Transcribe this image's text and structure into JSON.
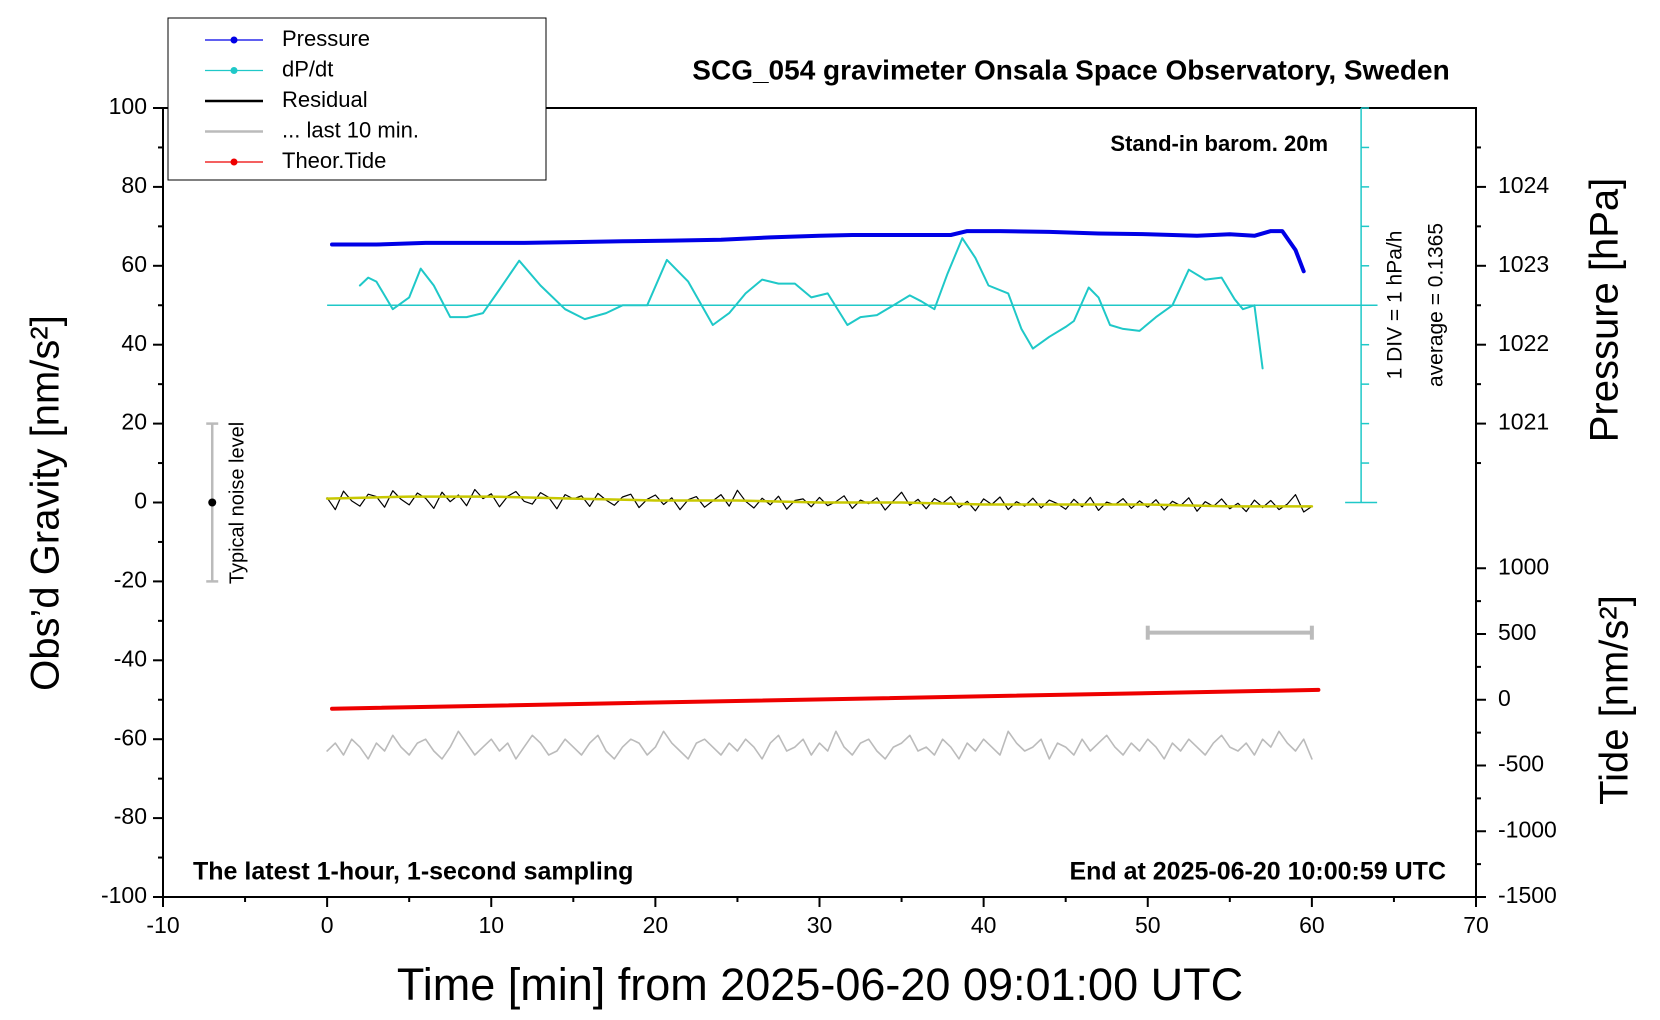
{
  "chart_data": {
    "type": "line",
    "title": "SCG_054 gravimeter Onsala Space Observatory, Sweden",
    "x_label": "Time [min] from 2025-06-20 09:01:00 UTC",
    "y_label": "Obs’d Gravity [nm/s²]",
    "y2_label": "Pressure [hPa]",
    "y3_label": "Tide [nm/s²]",
    "note_top_right": "Stand-in barom. 20m",
    "note_bottom_left": "The latest 1-hour, 1-second sampling",
    "note_bottom_right": "End at 2025-06-20 10:00:59 UTC",
    "dpdt_scale_label": "1 DIV = 1 hPa/h",
    "dpdt_average_label": "average = 0.1365",
    "noise_label": "Typical noise level",
    "xlim": [
      -10,
      70
    ],
    "xticks": [
      -10,
      0,
      10,
      20,
      30,
      40,
      50,
      60,
      70
    ],
    "xminor": [
      -5,
      5,
      15,
      25,
      35,
      45,
      55,
      65
    ],
    "ylim": [
      -100,
      100
    ],
    "yticks": [
      -100,
      -80,
      -60,
      -40,
      -20,
      0,
      20,
      40,
      60,
      80,
      100
    ],
    "yminor": [
      -90,
      -70,
      -50,
      -30,
      -10,
      10,
      30,
      50,
      70,
      90
    ],
    "y2lim": [
      1015,
      1025
    ],
    "y2ticks": [
      1021,
      1022,
      1023,
      1024
    ],
    "y2minor": [
      1020.5,
      1021.5,
      1022.5,
      1023.5,
      1024.5
    ],
    "y3lim": [
      -1500,
      4500
    ],
    "y3ticks": [
      -1500,
      -1000,
      -500,
      0,
      500,
      1000
    ],
    "y3minor": [
      -1250,
      -750,
      -250,
      250,
      750
    ],
    "x": [
      0,
      0.5,
      1,
      1.5,
      2,
      2.5,
      3,
      3.5,
      4,
      4.5,
      5,
      5.5,
      6,
      6.5,
      7,
      7.5,
      8,
      8.5,
      9,
      9.5,
      10,
      10.5,
      11,
      11.5,
      12,
      12.5,
      13,
      13.5,
      14,
      14.5,
      15,
      15.5,
      16,
      16.5,
      17,
      17.5,
      18,
      18.5,
      19,
      19.5,
      20,
      20.5,
      21,
      21.5,
      22,
      22.5,
      23,
      23.5,
      24,
      24.5,
      25,
      25.5,
      26,
      26.5,
      27,
      27.5,
      28,
      28.5,
      29,
      29.5,
      30,
      30.5,
      31,
      31.5,
      32,
      32.5,
      33,
      33.5,
      34,
      34.5,
      35,
      35.5,
      36,
      36.5,
      37,
      37.5,
      38,
      38.5,
      39,
      39.5,
      40,
      40.5,
      41,
      41.5,
      42,
      42.5,
      43,
      43.5,
      44,
      44.5,
      45,
      45.5,
      46,
      46.5,
      47,
      47.5,
      48,
      48.5,
      49,
      49.5,
      50,
      50.5,
      51,
      51.5,
      52,
      52.5,
      53,
      53.5,
      54,
      54.5,
      55,
      55.5,
      56,
      56.5,
      57,
      57.5,
      58,
      58.5,
      59,
      59.5,
      60
    ],
    "series": [
      {
        "name": "Pressure",
        "color": "#0000e6",
        "axis": "y2",
        "legend_marker": true,
        "width": 4,
        "x": [
          0.3,
          3,
          6,
          9,
          12,
          15,
          18,
          21,
          24,
          27,
          30,
          32,
          35,
          38,
          39,
          41,
          44,
          47,
          50,
          53,
          55,
          56.5,
          57.5,
          58.2,
          59,
          59.5
        ],
        "values": [
          1023.27,
          1023.27,
          1023.29,
          1023.29,
          1023.29,
          1023.3,
          1023.31,
          1023.32,
          1023.33,
          1023.36,
          1023.38,
          1023.39,
          1023.39,
          1023.39,
          1023.44,
          1023.44,
          1023.43,
          1023.41,
          1023.4,
          1023.38,
          1023.4,
          1023.38,
          1023.44,
          1023.44,
          1023.2,
          1022.93
        ]
      },
      {
        "name": "dP/dt",
        "color": "#1fc8c8",
        "legend_marker": true,
        "width": 2,
        "x": [
          2,
          2.5,
          3,
          4,
          5,
          5.7,
          6.5,
          7.5,
          8.5,
          9.5,
          10.5,
          11.7,
          13,
          14.5,
          15.7,
          17,
          18,
          19.5,
          20.7,
          22,
          23.5,
          24.5,
          25.5,
          26.5,
          27.5,
          28.5,
          29.5,
          30.5,
          31.7,
          32.5,
          33.5,
          34.5,
          35.5,
          36.2,
          37,
          37.8,
          38.7,
          39.5,
          40.3,
          41.5,
          42.3,
          43,
          44,
          45,
          45.5,
          46.4,
          47,
          47.7,
          48.5,
          49.5,
          50.5,
          51.5,
          52.5,
          53.5,
          54.5,
          55.3,
          55.8,
          56.5,
          57
        ],
        "values": [
          55,
          57,
          56,
          49,
          52,
          59.3,
          55,
          47,
          47,
          48,
          54,
          61.3,
          55,
          49,
          46.5,
          48,
          50,
          50,
          61.5,
          56,
          45,
          48,
          53,
          56.5,
          55.5,
          55.5,
          52,
          53,
          45,
          47,
          47.5,
          50,
          52.5,
          51,
          49,
          58,
          67,
          62,
          55,
          53,
          44,
          39,
          42,
          44.5,
          46,
          54.5,
          52,
          45,
          44,
          43.5,
          47,
          50,
          59,
          56.5,
          57,
          51.5,
          49,
          50,
          34
        ]
      },
      {
        "name": "Residual",
        "color": "#000000",
        "legend_marker": false,
        "width": 1.2,
        "values": [
          1.2,
          -1.8,
          2.9,
          0.4,
          -0.9,
          2.1,
          1.5,
          -1.2,
          3.0,
          0.8,
          -0.6,
          2.4,
          1.1,
          -1.5,
          2.6,
          0.2,
          1.9,
          -0.8,
          3.3,
          1.0,
          2.2,
          -1.1,
          1.6,
          2.8,
          0.3,
          -0.4,
          2.5,
          1.3,
          -1.6,
          2.0,
          0.9,
          1.7,
          -1.0,
          2.3,
          0.6,
          -0.7,
          1.4,
          2.1,
          -1.3,
          0.8,
          1.9,
          -0.5,
          1.2,
          -1.8,
          0.7,
          1.5,
          -1.2,
          0.4,
          2.0,
          -0.9,
          3.1,
          0.3,
          -1.4,
          1.1,
          -0.6,
          1.6,
          -1.7,
          0.5,
          0.9,
          -1.1,
          1.3,
          -0.8,
          0.2,
          1.7,
          -1.5,
          0.6,
          -0.3,
          1.2,
          -1.9,
          0.4,
          2.6,
          -0.7,
          0.8,
          -1.6,
          1.0,
          -0.2,
          1.5,
          -1.3,
          0.3,
          -2.1,
          0.9,
          -0.5,
          1.4,
          -1.8,
          0.2,
          -0.9,
          1.1,
          -1.4,
          0.6,
          -0.3,
          -1.7,
          0.8,
          -1.1,
          1.3,
          -2.0,
          0.1,
          -0.6,
          1.0,
          -1.5,
          0.4,
          -1.2,
          0.7,
          -1.9,
          0.3,
          -0.8,
          1.2,
          -2.2,
          0.2,
          -1.0,
          0.9,
          -1.6,
          -0.2,
          -2.3,
          0.6,
          -1.3,
          0.5,
          -1.8,
          -0.4,
          2.0,
          -2.4,
          -1.0
        ]
      },
      {
        "name": "... last 10 min.",
        "color": "#bbbbbb",
        "legend_marker": false,
        "width": 1.6,
        "values": [
          -63,
          -61,
          -64,
          -60,
          -62,
          -65,
          -61,
          -63,
          -59,
          -62,
          -64,
          -61,
          -60,
          -63,
          -65,
          -62,
          -58,
          -61,
          -64,
          -62,
          -60,
          -63,
          -61,
          -65,
          -62,
          -59,
          -61,
          -64,
          -63,
          -60,
          -62,
          -64,
          -61,
          -59,
          -63,
          -65,
          -62,
          -60,
          -61,
          -64,
          -62,
          -58,
          -61,
          -63,
          -65,
          -61,
          -60,
          -62,
          -64,
          -61,
          -63,
          -60,
          -62,
          -65,
          -61,
          -59,
          -63,
          -62,
          -60,
          -64,
          -61,
          -63,
          -58,
          -62,
          -64,
          -61,
          -60,
          -63,
          -65,
          -62,
          -61,
          -59,
          -63,
          -62,
          -64,
          -60,
          -62,
          -65,
          -61,
          -63,
          -60,
          -62,
          -64,
          -58,
          -61,
          -63,
          -62,
          -60,
          -65,
          -61,
          -62,
          -64,
          -60,
          -63,
          -61,
          -59,
          -62,
          -64,
          -61,
          -63,
          -60,
          -62,
          -65,
          -61,
          -63,
          -60,
          -62,
          -64,
          -61,
          -59,
          -62,
          -63,
          -61,
          -64,
          -60,
          -62,
          -58,
          -61,
          -63,
          -60,
          -65
        ]
      },
      {
        "name": "Theor.Tide",
        "color": "#ee0000",
        "axis": "y3",
        "legend_marker": true,
        "width": 4,
        "x": [
          0.3,
          60.4
        ],
        "values": [
          -68,
          75
        ]
      }
    ],
    "smoothed": {
      "color": "#c8c800",
      "x": [
        0,
        5,
        10,
        15,
        20,
        25,
        30,
        35,
        40,
        45,
        50,
        55,
        60
      ],
      "values": [
        1,
        1.5,
        1.5,
        1,
        0.5,
        0.5,
        0,
        0,
        -0.5,
        -0.5,
        -0.5,
        -1,
        -1
      ]
    },
    "dpdt_reference": {
      "level": 50,
      "x": [
        0,
        64
      ]
    },
    "dpdt_scale": {
      "x": 63,
      "ticks": [
        0,
        10,
        20,
        30,
        40,
        50,
        60,
        70,
        80,
        90,
        100
      ]
    },
    "noise_bar": {
      "x": -7,
      "low": -20,
      "high": 20,
      "center": 0
    },
    "window_bar": {
      "x": [
        50,
        60
      ],
      "y": -33
    }
  }
}
